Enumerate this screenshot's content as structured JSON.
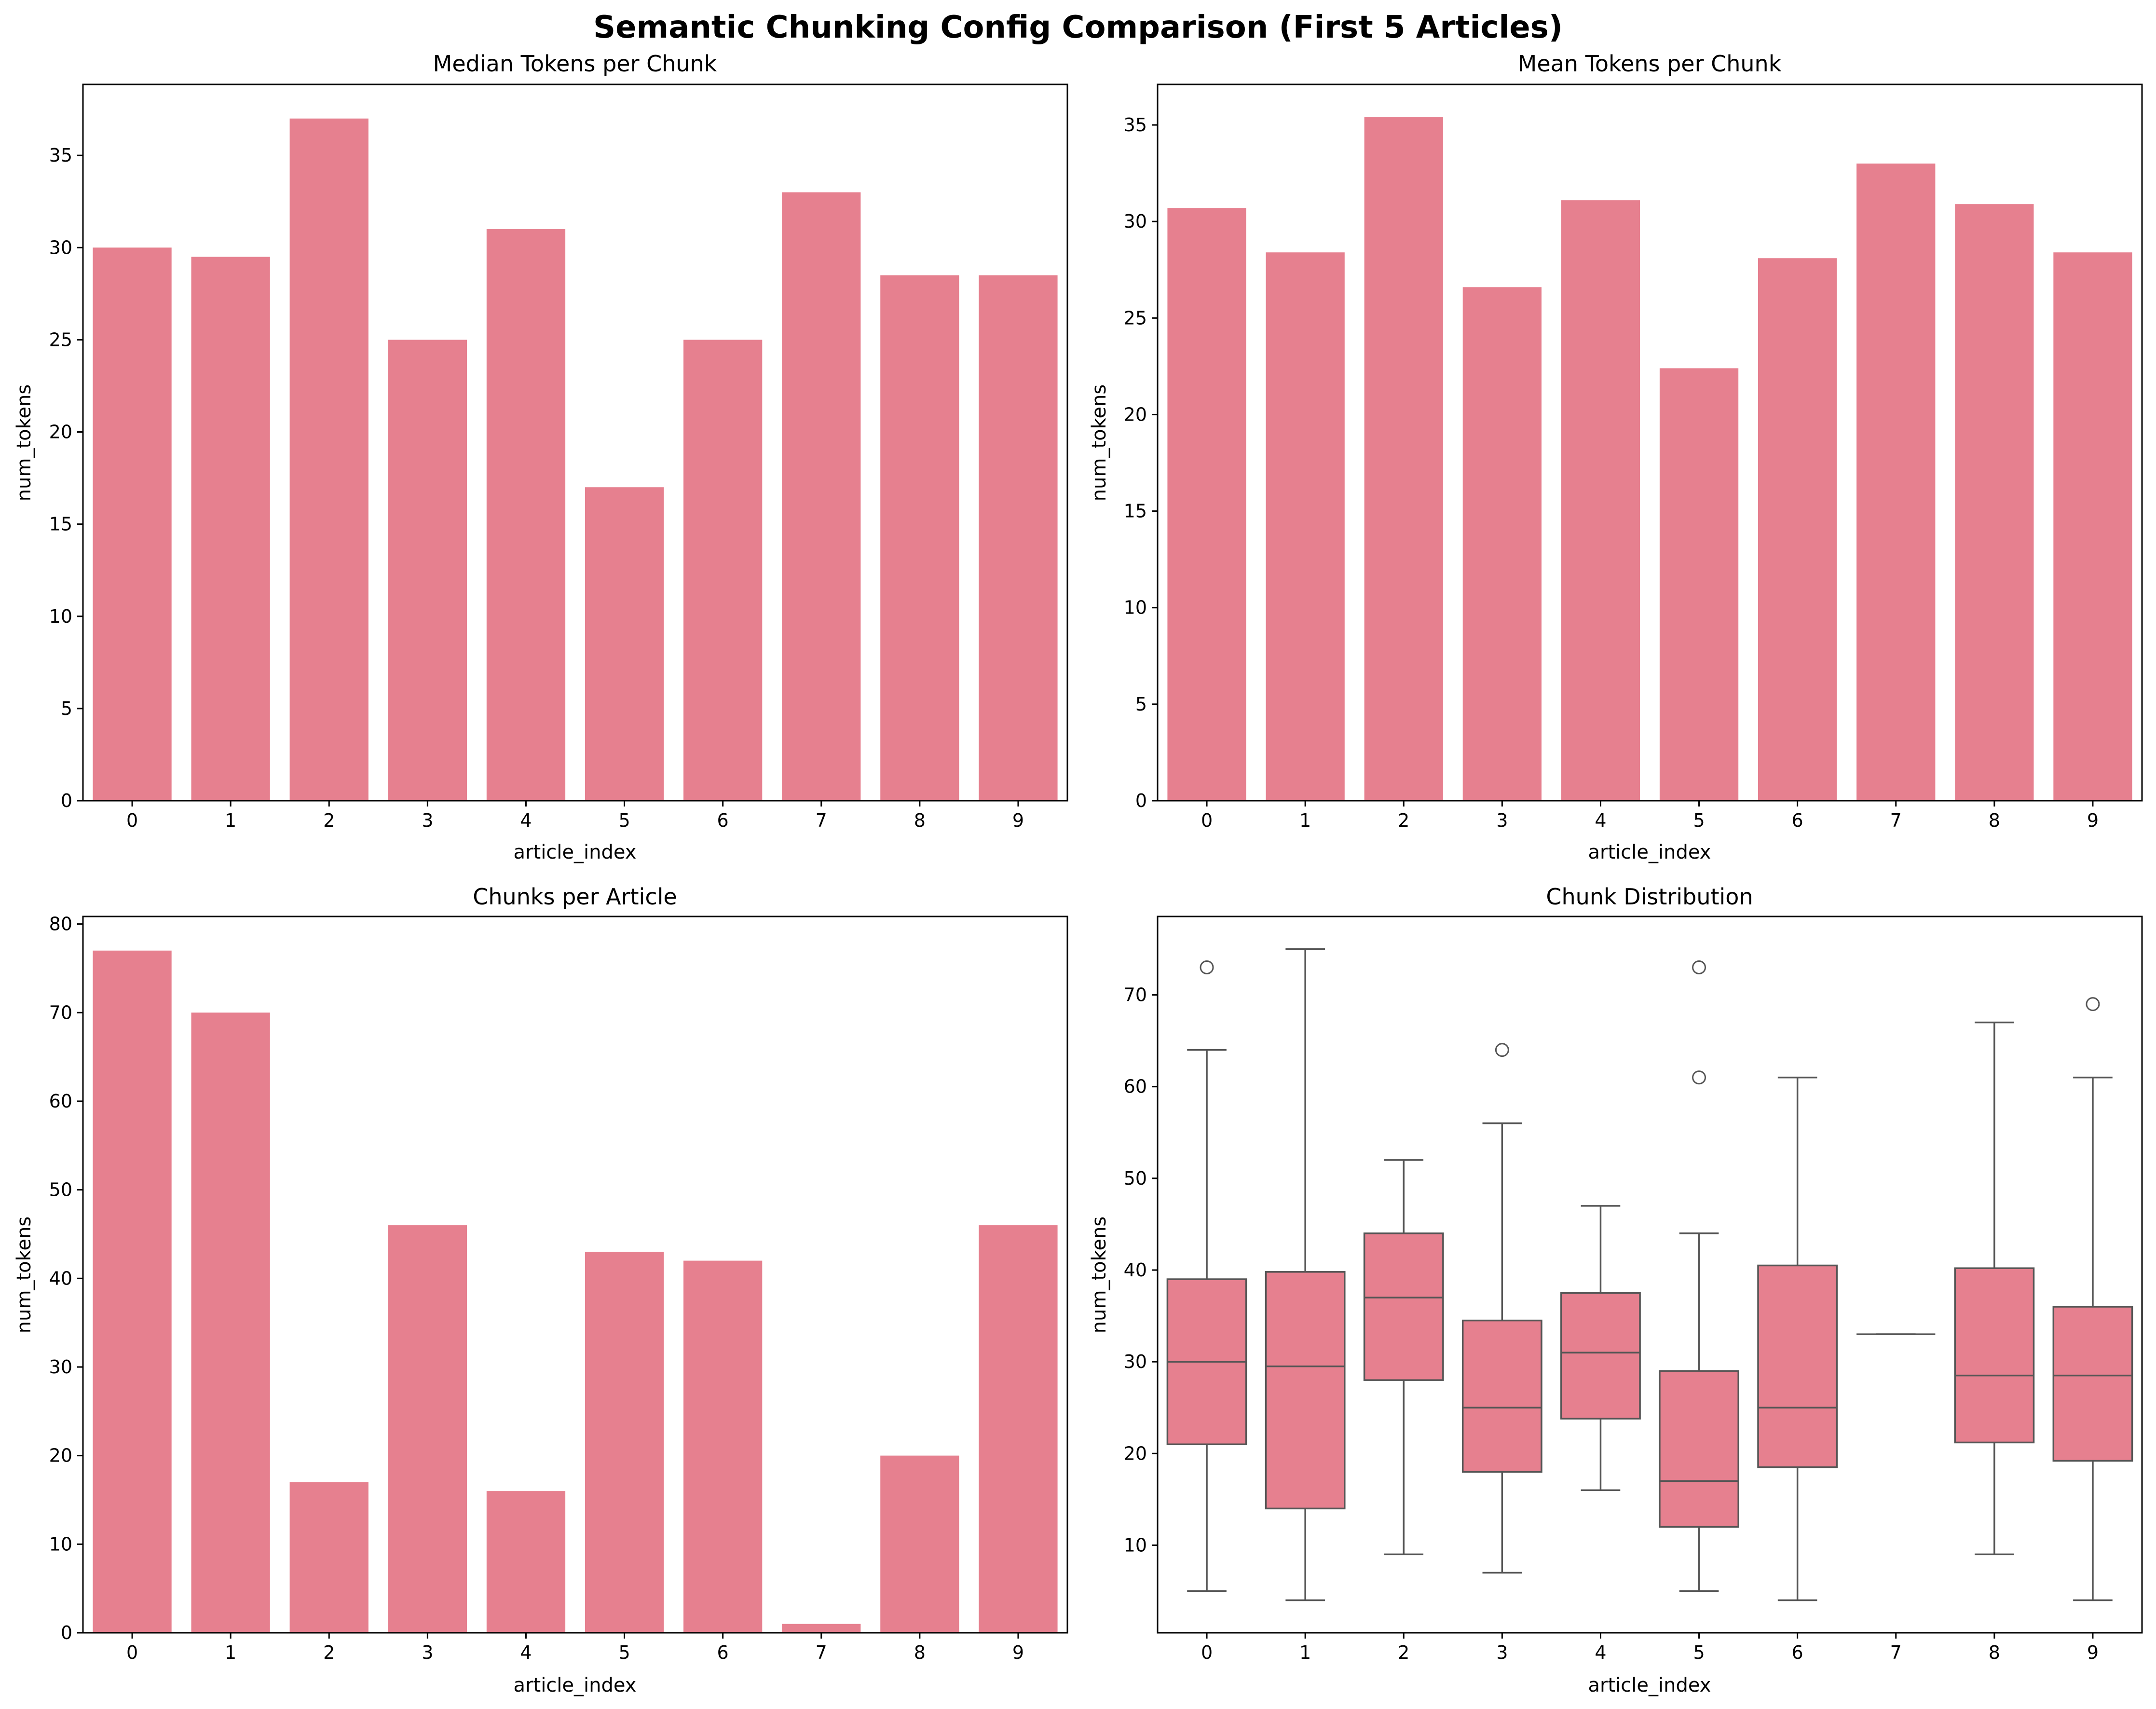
{
  "figure": {
    "suptitle": "Semantic Chunking Config Comparison (First 5 Articles)",
    "bar_color": "#e6808f",
    "box_line_color": "#555555"
  },
  "chart_data": [
    {
      "type": "bar",
      "title": "Median Tokens per Chunk",
      "xlabel": "article_index",
      "ylabel": "num_tokens",
      "categories": [
        "0",
        "1",
        "2",
        "3",
        "4",
        "5",
        "6",
        "7",
        "8",
        "9"
      ],
      "values": [
        30,
        29.5,
        37,
        25,
        31,
        17,
        25,
        33,
        28.5,
        28.5
      ],
      "ylim": [
        0,
        38.85
      ],
      "yticks": [
        0,
        5,
        10,
        15,
        20,
        25,
        30,
        35
      ],
      "grid": false
    },
    {
      "type": "bar",
      "title": "Mean Tokens per Chunk",
      "xlabel": "article_index",
      "ylabel": "num_tokens",
      "categories": [
        "0",
        "1",
        "2",
        "3",
        "4",
        "5",
        "6",
        "7",
        "8",
        "9"
      ],
      "values": [
        30.7,
        28.4,
        35.4,
        26.6,
        31.1,
        22.4,
        28.1,
        33.0,
        30.9,
        28.4
      ],
      "ylim": [
        0,
        37.1
      ],
      "yticks": [
        0,
        5,
        10,
        15,
        20,
        25,
        30,
        35
      ],
      "grid": false
    },
    {
      "type": "bar",
      "title": "Chunks per Article",
      "xlabel": "article_index",
      "ylabel": "num_tokens",
      "categories": [
        "0",
        "1",
        "2",
        "3",
        "4",
        "5",
        "6",
        "7",
        "8",
        "9"
      ],
      "values": [
        77,
        70,
        17,
        46,
        16,
        43,
        42,
        1,
        20,
        46
      ],
      "ylim": [
        0,
        80.85
      ],
      "yticks": [
        0,
        10,
        20,
        30,
        40,
        50,
        60,
        70,
        80
      ],
      "grid": false
    },
    {
      "type": "box",
      "title": "Chunk Distribution",
      "xlabel": "article_index",
      "ylabel": "num_tokens",
      "categories": [
        "0",
        "1",
        "2",
        "3",
        "4",
        "5",
        "6",
        "7",
        "8",
        "9"
      ],
      "boxes": [
        {
          "whislo": 5,
          "q1": 21,
          "med": 30,
          "q3": 39,
          "whishi": 64,
          "fliers": [
            73
          ]
        },
        {
          "whislo": 4,
          "q1": 14,
          "med": 29.5,
          "q3": 39.8,
          "whishi": 75,
          "fliers": []
        },
        {
          "whislo": 9,
          "q1": 28,
          "med": 37,
          "q3": 44,
          "whishi": 52,
          "fliers": []
        },
        {
          "whislo": 7,
          "q1": 18,
          "med": 25,
          "q3": 34.5,
          "whishi": 56,
          "fliers": [
            64
          ]
        },
        {
          "whislo": 16,
          "q1": 23.8,
          "med": 31,
          "q3": 37.5,
          "whishi": 47,
          "fliers": []
        },
        {
          "whislo": 5,
          "q1": 12,
          "med": 17,
          "q3": 29,
          "whishi": 44,
          "fliers": [
            61,
            73
          ]
        },
        {
          "whislo": 4,
          "q1": 18.5,
          "med": 25,
          "q3": 40.5,
          "whishi": 61,
          "fliers": []
        },
        {
          "whislo": 33,
          "q1": 33,
          "med": 33,
          "q3": 33,
          "whishi": 33,
          "fliers": []
        },
        {
          "whislo": 9,
          "q1": 21.2,
          "med": 28.5,
          "q3": 40.2,
          "whishi": 67,
          "fliers": []
        },
        {
          "whislo": 4,
          "q1": 19.2,
          "med": 28.5,
          "q3": 36,
          "whishi": 61,
          "fliers": [
            69
          ]
        }
      ],
      "ylim": [
        0.45,
        78.55
      ],
      "yticks": [
        10,
        20,
        30,
        40,
        50,
        60,
        70
      ],
      "grid": false
    }
  ]
}
